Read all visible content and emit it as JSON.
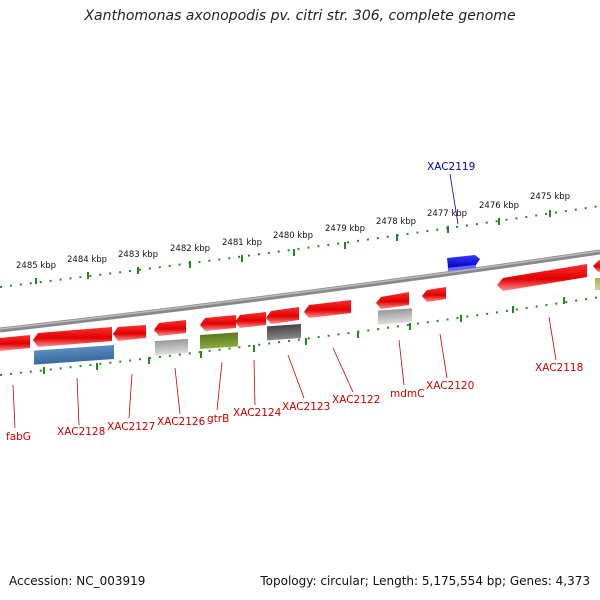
{
  "title": "Xanthomonas axonopodis pv. citri str. 306, complete genome",
  "footer": {
    "accession": "Accession: NC_003919",
    "summary": "Topology: circular; Length: 5,175,554 bp; Genes: 4,373"
  },
  "colors": {
    "gene_red": "#ee0000",
    "gene_blue": "#0000ee",
    "backbone": "#777777",
    "tick_green": "#228822",
    "label_red": "#cc0000",
    "label_blue": "#0000cc"
  },
  "kbp_labels": [
    "2485 kbp",
    "2484 kbp",
    "2483 kbp",
    "2482 kbp",
    "2481 kbp",
    "2480 kbp",
    "2479 kbp",
    "2478 kbp",
    "2477 kbp",
    "2476 kbp",
    "2475 kbp"
  ],
  "gene_labels": [
    "fabG",
    "XAC2128",
    "XAC2127",
    "XAC2126",
    "gtrB",
    "XAC2124",
    "XAC2123",
    "XAC2122",
    "mdmC",
    "XAC2120",
    "XAC2118",
    "XAC2119"
  ]
}
